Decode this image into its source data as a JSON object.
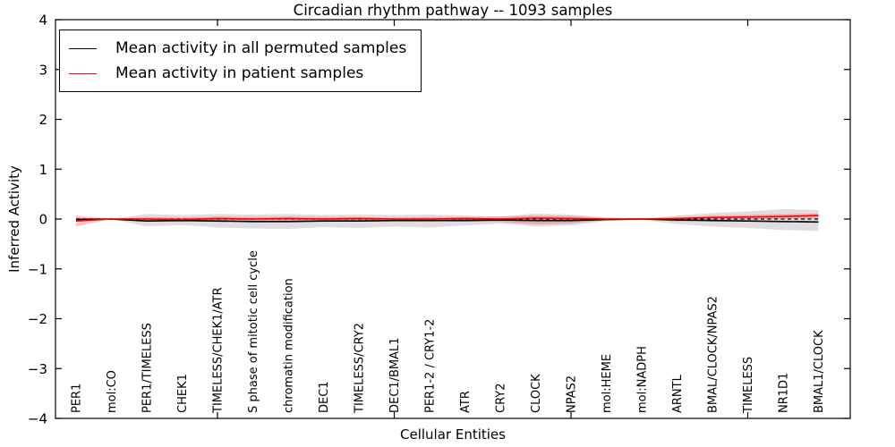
{
  "chart_data": {
    "type": "line",
    "title": "Circadian rhythm pathway -- 1093 samples",
    "xlabel": "Cellular Entities",
    "ylabel": "Inferred Activity",
    "ylim": [
      -4,
      4
    ],
    "yticks": [
      -4,
      -3,
      -2,
      -1,
      0,
      1,
      2,
      3,
      4
    ],
    "xtick_indices": [
      4,
      9,
      14,
      19
    ],
    "grid": false,
    "legend_position": "upper-left",
    "categories": [
      "PER1",
      "mol:CO",
      "PER1/TIMELESS",
      "CHEK1",
      "TIMELESS/CHEK1/ATR",
      "S phase of mitotic cell cycle",
      "chromatin modification",
      "DEC1",
      "TIMELESS/CRY2",
      "DEC1/BMAL1",
      "PER1-2 / CRY1-2",
      "ATR",
      "CRY2",
      "CLOCK",
      "NPAS2",
      "mol:HEME",
      "mol:NADPH",
      "ARNTL",
      "BMAL/CLOCK/NPAS2",
      "TIMELESS",
      "NR1D1",
      "BMAL1/CLOCK"
    ],
    "zero_line": {
      "value": 0,
      "style": "dashed",
      "color": "#000000"
    },
    "series": [
      {
        "name": "Mean activity in all permuted samples",
        "color": "#000000",
        "band_color": "#888888",
        "band_opacity": 0.28,
        "mean": [
          -0.01,
          0,
          -0.04,
          -0.03,
          -0.04,
          -0.05,
          -0.05,
          -0.04,
          -0.04,
          -0.03,
          -0.03,
          -0.03,
          -0.02,
          -0.03,
          -0.03,
          -0.01,
          0,
          -0.02,
          -0.03,
          -0.04,
          -0.05,
          -0.06
        ],
        "band_upper": [
          0.03,
          0,
          0.1,
          0.08,
          0.1,
          0.09,
          0.1,
          0.08,
          0.09,
          0.08,
          0.09,
          0.07,
          0.05,
          0.11,
          0.09,
          0.03,
          0.01,
          0.07,
          0.12,
          0.15,
          0.2,
          0.18
        ],
        "band_lower": [
          -0.05,
          0,
          -0.15,
          -0.12,
          -0.17,
          -0.19,
          -0.2,
          -0.16,
          -0.18,
          -0.15,
          -0.17,
          -0.13,
          -0.09,
          -0.15,
          -0.13,
          -0.04,
          -0.02,
          -0.1,
          -0.15,
          -0.18,
          -0.22,
          -0.24
        ]
      },
      {
        "name": "Mean activity in patient samples",
        "color": "#ff0000",
        "band_color": "#ff0000",
        "band_opacity": 0.22,
        "mean": [
          -0.04,
          0,
          0,
          -0.01,
          0.01,
          0,
          0.01,
          0,
          0.01,
          0,
          0,
          0.01,
          0,
          0.02,
          0.01,
          0,
          0,
          0.01,
          0.03,
          0.04,
          0.05,
          0.07
        ],
        "band_upper": [
          0.07,
          0,
          0.04,
          0.03,
          0.05,
          0.04,
          0.05,
          0.04,
          0.04,
          0.03,
          0.04,
          0.04,
          0.05,
          0.07,
          0.06,
          0.02,
          0.01,
          0.03,
          0.07,
          0.08,
          0.1,
          0.11
        ],
        "band_lower": [
          -0.15,
          0,
          -0.05,
          -0.04,
          -0.06,
          -0.05,
          -0.05,
          -0.04,
          -0.05,
          -0.04,
          -0.04,
          -0.05,
          -0.06,
          -0.11,
          -0.09,
          -0.02,
          -0.01,
          -0.05,
          -0.02,
          -0.01,
          0,
          0.01
        ]
      }
    ]
  }
}
